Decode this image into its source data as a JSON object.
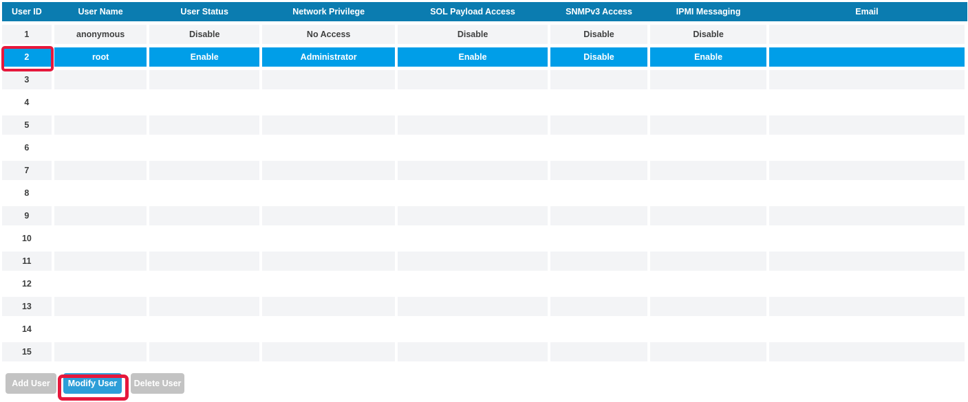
{
  "colors": {
    "header_bg": "#0b7cb0",
    "header_text": "#ffffff",
    "selected_row_bg": "#009ee8",
    "selected_row_text": "#ffffff",
    "alt_row_bg": "#f3f4f6",
    "cell_text": "#3f4040",
    "active_button_bg": "#2d9ed8",
    "disabled_button_bg": "#c3c3c3",
    "button_text": "#ffffff",
    "annotation_red": "#e6183c"
  },
  "table": {
    "columns": [
      "User ID",
      "User Name",
      "User Status",
      "Network Privilege",
      "SOL Payload Access",
      "SNMPv3 Access",
      "IPMI Messaging",
      "Email"
    ],
    "selected_user_id": "2",
    "rows": [
      [
        "1",
        "anonymous",
        "Disable",
        "No Access",
        "Disable",
        "Disable",
        "Disable",
        ""
      ],
      [
        "2",
        "root",
        "Enable",
        "Administrator",
        "Enable",
        "Disable",
        "Enable",
        ""
      ],
      [
        "3",
        "",
        "",
        "",
        "",
        "",
        "",
        ""
      ],
      [
        "4",
        "",
        "",
        "",
        "",
        "",
        "",
        ""
      ],
      [
        "5",
        "",
        "",
        "",
        "",
        "",
        "",
        ""
      ],
      [
        "6",
        "",
        "",
        "",
        "",
        "",
        "",
        ""
      ],
      [
        "7",
        "",
        "",
        "",
        "",
        "",
        "",
        ""
      ],
      [
        "8",
        "",
        "",
        "",
        "",
        "",
        "",
        ""
      ],
      [
        "9",
        "",
        "",
        "",
        "",
        "",
        "",
        ""
      ],
      [
        "10",
        "",
        "",
        "",
        "",
        "",
        "",
        ""
      ],
      [
        "11",
        "",
        "",
        "",
        "",
        "",
        "",
        ""
      ],
      [
        "12",
        "",
        "",
        "",
        "",
        "",
        "",
        ""
      ],
      [
        "13",
        "",
        "",
        "",
        "",
        "",
        "",
        ""
      ],
      [
        "14",
        "",
        "",
        "",
        "",
        "",
        "",
        ""
      ],
      [
        "15",
        "",
        "",
        "",
        "",
        "",
        "",
        ""
      ]
    ]
  },
  "actions": {
    "add_user": {
      "label": "Add User",
      "enabled": false
    },
    "modify_user": {
      "label": "Modify User",
      "enabled": true
    },
    "delete_user": {
      "label": "Delete User",
      "enabled": false
    }
  },
  "annotations": {
    "boxes": [
      {
        "target": "user-id-cell-of-selected-row-2"
      },
      {
        "target": "modify-user-button"
      }
    ]
  }
}
